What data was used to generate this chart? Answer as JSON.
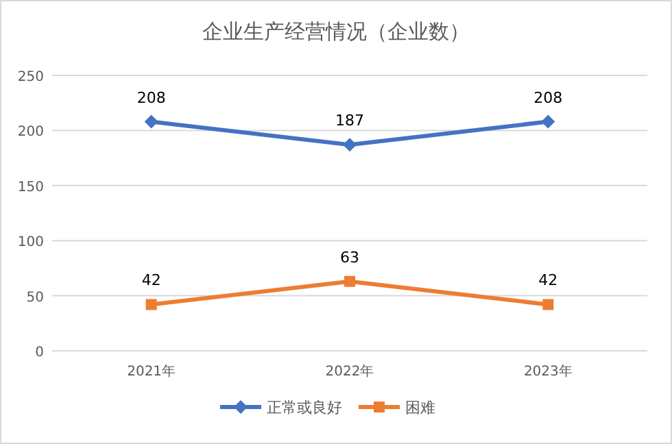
{
  "chart_data": {
    "type": "line",
    "title": "企业生产经营情况（企业数）",
    "categories": [
      "2021年",
      "2022年",
      "2023年"
    ],
    "series": [
      {
        "name": "正常或良好",
        "color": "#4472c4",
        "values": [
          208,
          187,
          208
        ],
        "marker": "diamond"
      },
      {
        "name": "困难",
        "color": "#ed7d31",
        "values": [
          42,
          63,
          42
        ],
        "marker": "square"
      }
    ],
    "ylim": [
      0,
      250
    ],
    "yticks": [
      0,
      50,
      100,
      150,
      200,
      250
    ],
    "grid": "y",
    "legend": "bottom",
    "data_labels": true,
    "line_style": "solid"
  }
}
